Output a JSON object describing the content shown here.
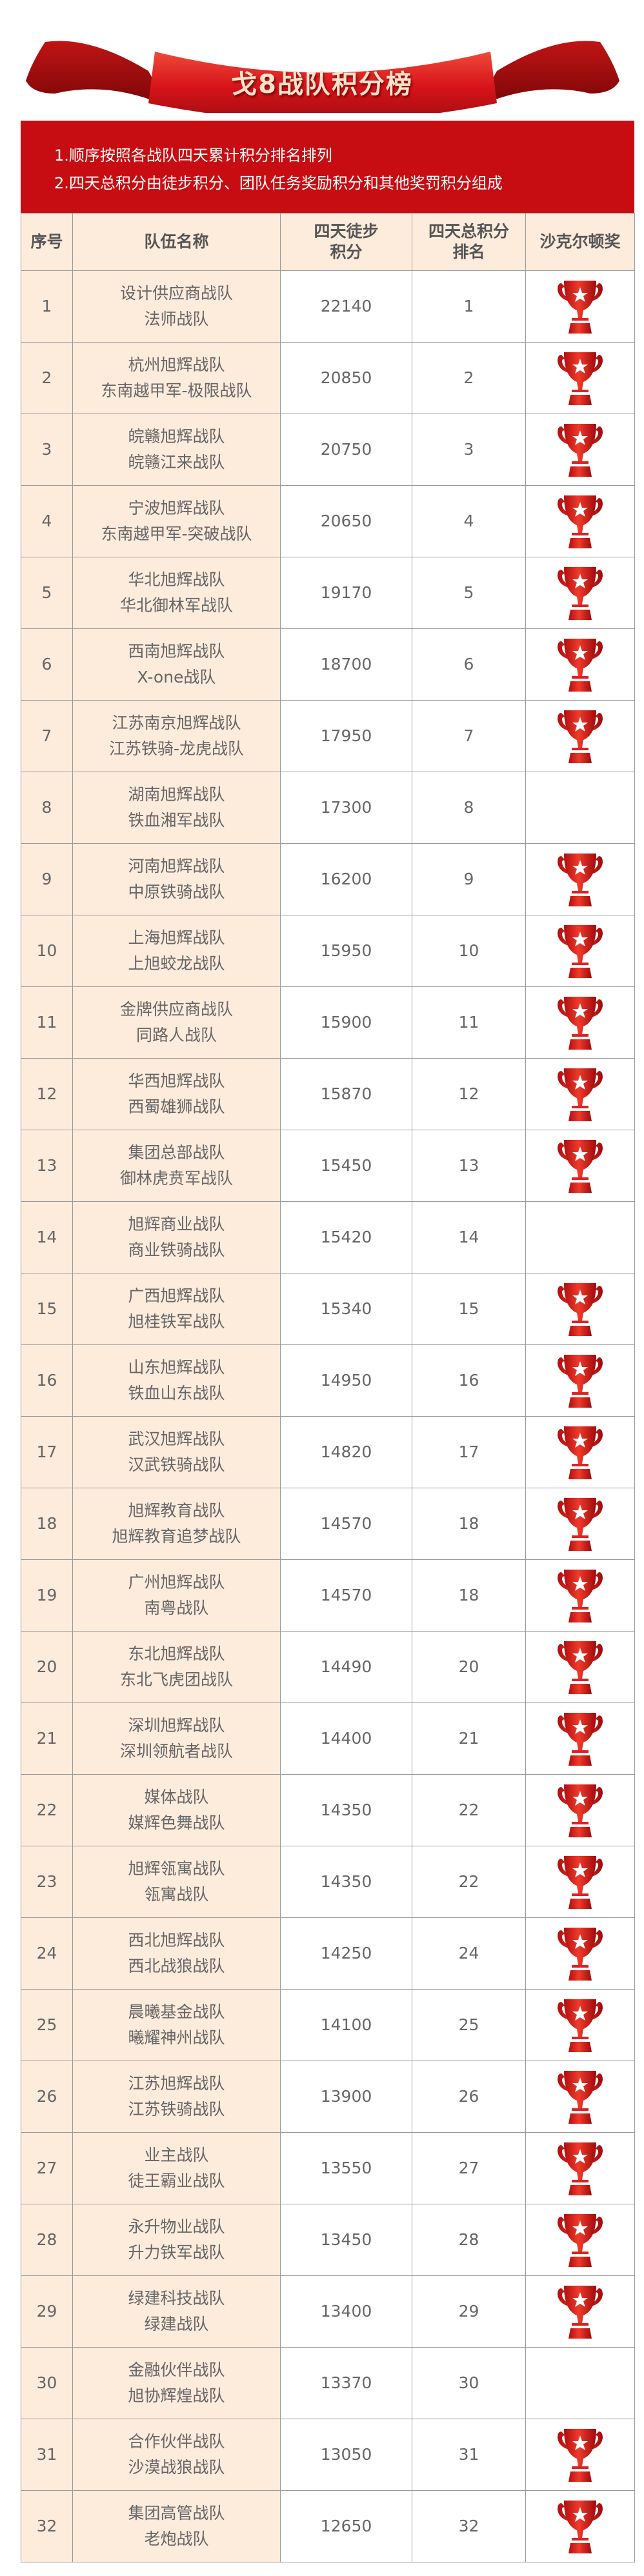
{
  "title": "戈8战队积分榜",
  "notes": [
    "1.顺序按照各战队四天累计积分排名排列",
    "2.四天总积分由徒步积分、团队任务奖励积分和其他奖罚积分组成"
  ],
  "colors": {
    "accent": "#c80d12",
    "peach": "#fdebdc",
    "text": "#666666"
  },
  "table": {
    "headers": [
      "序号",
      "队伍名称",
      "四天徒步\n积分",
      "四天总积分\n排名",
      "沙克尔顿奖"
    ],
    "award_icon": "trophy-icon",
    "rows": [
      {
        "no": "1",
        "names": [
          "设计供应商战队",
          "法师战队"
        ],
        "score": "22140",
        "rank": "1",
        "award": true
      },
      {
        "no": "2",
        "names": [
          "杭州旭辉战队",
          "东南越甲军-极限战队"
        ],
        "score": "20850",
        "rank": "2",
        "award": true
      },
      {
        "no": "3",
        "names": [
          "皖赣旭辉战队",
          "皖赣江来战队"
        ],
        "score": "20750",
        "rank": "3",
        "award": true
      },
      {
        "no": "4",
        "names": [
          "宁波旭辉战队",
          "东南越甲军-突破战队"
        ],
        "score": "20650",
        "rank": "4",
        "award": true
      },
      {
        "no": "5",
        "names": [
          "华北旭辉战队",
          "华北御林军战队"
        ],
        "score": "19170",
        "rank": "5",
        "award": true
      },
      {
        "no": "6",
        "names": [
          "西南旭辉战队",
          "X-one战队"
        ],
        "score": "18700",
        "rank": "6",
        "award": true
      },
      {
        "no": "7",
        "names": [
          "江苏南京旭辉战队",
          "江苏铁骑-龙虎战队"
        ],
        "score": "17950",
        "rank": "7",
        "award": true
      },
      {
        "no": "8",
        "names": [
          "湖南旭辉战队",
          "铁血湘军战队"
        ],
        "score": "17300",
        "rank": "8",
        "award": false
      },
      {
        "no": "9",
        "names": [
          "河南旭辉战队",
          "中原铁骑战队"
        ],
        "score": "16200",
        "rank": "9",
        "award": true
      },
      {
        "no": "10",
        "names": [
          "上海旭辉战队",
          "上旭蛟龙战队"
        ],
        "score": "15950",
        "rank": "10",
        "award": true
      },
      {
        "no": "11",
        "names": [
          "金牌供应商战队",
          "同路人战队"
        ],
        "score": "15900",
        "rank": "11",
        "award": true
      },
      {
        "no": "12",
        "names": [
          "华西旭辉战队",
          "西蜀雄狮战队"
        ],
        "score": "15870",
        "rank": "12",
        "award": true
      },
      {
        "no": "13",
        "names": [
          "集团总部战队",
          "御林虎贲军战队"
        ],
        "score": "15450",
        "rank": "13",
        "award": true
      },
      {
        "no": "14",
        "names": [
          "旭辉商业战队",
          "商业铁骑战队"
        ],
        "score": "15420",
        "rank": "14",
        "award": false
      },
      {
        "no": "15",
        "names": [
          "广西旭辉战队",
          "旭桂铁军战队"
        ],
        "score": "15340",
        "rank": "15",
        "award": true
      },
      {
        "no": "16",
        "names": [
          "山东旭辉战队",
          "铁血山东战队"
        ],
        "score": "14950",
        "rank": "16",
        "award": true
      },
      {
        "no": "17",
        "names": [
          "武汉旭辉战队",
          "汉武铁骑战队"
        ],
        "score": "14820",
        "rank": "17",
        "award": true
      },
      {
        "no": "18",
        "names": [
          "旭辉教育战队",
          "旭辉教育追梦战队"
        ],
        "score": "14570",
        "rank": "18",
        "award": true
      },
      {
        "no": "19",
        "names": [
          "广州旭辉战队",
          "南粤战队"
        ],
        "score": "14570",
        "rank": "18",
        "award": true
      },
      {
        "no": "20",
        "names": [
          "东北旭辉战队",
          "东北飞虎团战队"
        ],
        "score": "14490",
        "rank": "20",
        "award": true
      },
      {
        "no": "21",
        "names": [
          "深圳旭辉战队",
          "深圳领航者战队"
        ],
        "score": "14400",
        "rank": "21",
        "award": true
      },
      {
        "no": "22",
        "names": [
          "媒体战队",
          "媒辉色舞战队"
        ],
        "score": "14350",
        "rank": "22",
        "award": true
      },
      {
        "no": "23",
        "names": [
          "旭辉瓴寓战队",
          "瓴寓战队"
        ],
        "score": "14350",
        "rank": "22",
        "award": true
      },
      {
        "no": "24",
        "names": [
          "西北旭辉战队",
          "西北战狼战队"
        ],
        "score": "14250",
        "rank": "24",
        "award": true
      },
      {
        "no": "25",
        "names": [
          "晨曦基金战队",
          "曦耀神州战队"
        ],
        "score": "14100",
        "rank": "25",
        "award": true
      },
      {
        "no": "26",
        "names": [
          "江苏旭辉战队",
          "江苏铁骑战队"
        ],
        "score": "13900",
        "rank": "26",
        "award": true
      },
      {
        "no": "27",
        "names": [
          "业主战队",
          "徒王霸业战队"
        ],
        "score": "13550",
        "rank": "27",
        "award": true
      },
      {
        "no": "28",
        "names": [
          "永升物业战队",
          "升力铁军战队"
        ],
        "score": "13450",
        "rank": "28",
        "award": true
      },
      {
        "no": "29",
        "names": [
          "绿建科技战队",
          "绿建战队"
        ],
        "score": "13400",
        "rank": "29",
        "award": true
      },
      {
        "no": "30",
        "names": [
          "金融伙伴战队",
          "旭协辉煌战队"
        ],
        "score": "13370",
        "rank": "30",
        "award": false
      },
      {
        "no": "31",
        "names": [
          "合作伙伴战队",
          "沙漠战狼战队"
        ],
        "score": "13050",
        "rank": "31",
        "award": true
      },
      {
        "no": "32",
        "names": [
          "集团高管战队",
          "老炮战队"
        ],
        "score": "12650",
        "rank": "32",
        "award": true
      }
    ]
  }
}
